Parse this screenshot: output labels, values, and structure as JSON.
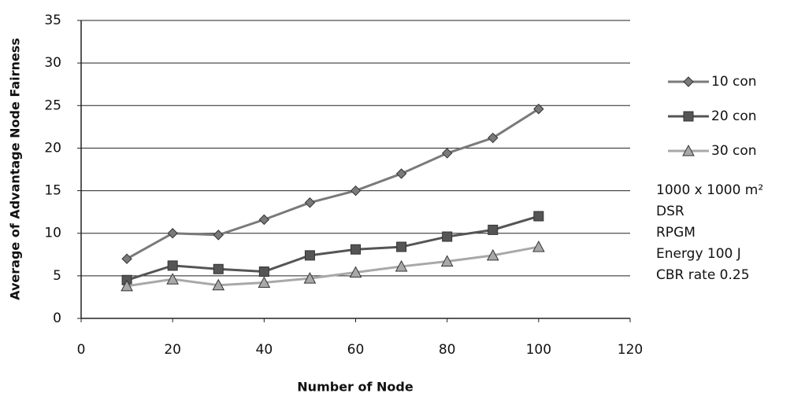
{
  "chart_data": {
    "type": "line",
    "x_label": "Number of Node",
    "y_label": "Average of Advantage Node Fairness",
    "x": [
      10,
      20,
      30,
      40,
      50,
      60,
      70,
      80,
      90,
      100
    ],
    "series": [
      {
        "name": "10 con",
        "color": "#7a7a7a",
        "marker": "diamond",
        "values": [
          7.0,
          10.0,
          9.8,
          11.6,
          13.6,
          15.0,
          17.0,
          19.4,
          21.2,
          24.6
        ]
      },
      {
        "name": "20 con",
        "color": "#555555",
        "marker": "square",
        "values": [
          4.5,
          6.2,
          5.8,
          5.5,
          7.4,
          8.1,
          8.4,
          9.6,
          10.4,
          12.0
        ]
      },
      {
        "name": "30 con",
        "color": "#a8a8a8",
        "marker": "triangle",
        "values": [
          3.8,
          4.6,
          3.9,
          4.2,
          4.7,
          5.4,
          6.1,
          6.7,
          7.4,
          8.4
        ]
      }
    ],
    "annotations": [
      "1000 x 1000 m²",
      "DSR",
      "RPGM",
      "Energy 100 J",
      "CBR rate 0.25"
    ],
    "xlim": [
      0,
      120
    ],
    "xticks": [
      0,
      20,
      40,
      60,
      80,
      100,
      120
    ],
    "ylim": [
      0,
      35
    ],
    "yticks": [
      0,
      5,
      10,
      15,
      20,
      25,
      30,
      35
    ],
    "grid": true
  }
}
